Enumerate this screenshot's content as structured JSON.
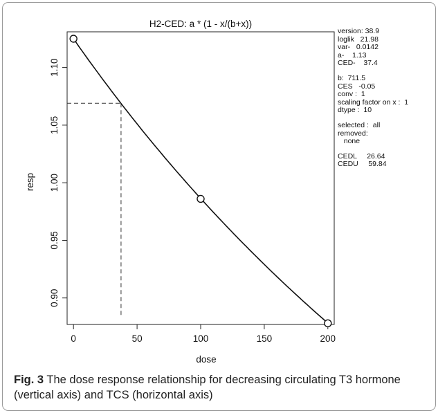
{
  "chart_data": {
    "type": "line",
    "title": "H2-CED: a * (1 - x/(b+x))",
    "xlabel": "dose",
    "ylabel": "resp",
    "xlim": [
      -5,
      205
    ],
    "ylim": [
      0.877,
      1.131
    ],
    "x_ticks": [
      0,
      50,
      100,
      150,
      200
    ],
    "x_tick_labels": [
      "0",
      "50",
      "100",
      "150",
      "200"
    ],
    "y_ticks": [
      0.9,
      0.95,
      1.0,
      1.05,
      1.1
    ],
    "y_tick_labels": [
      "0.90",
      "0.95",
      "1.00",
      "1.05",
      "1.10"
    ],
    "grid": false,
    "model": {
      "a": 1.125,
      "b": 711.5
    },
    "points": [
      {
        "x": 0,
        "y": 1.125
      },
      {
        "x": 100,
        "y": 0.986
      },
      {
        "x": 200,
        "y": 0.878
      }
    ],
    "ced_marker": {
      "x": 37.4,
      "y": 1.069
    }
  },
  "stats_panel": {
    "group1": [
      "version: 38.9",
      "loglik   21.98",
      "var-   0.0142",
      "a-    1.13",
      "CED-    37.4"
    ],
    "group2": [
      "b:  711.5",
      "CES   -0.05",
      "conv :  1",
      "scaling factor on x :  1",
      "dtype :  10"
    ],
    "group3": [
      "selected :  all",
      "removed:",
      "   none"
    ],
    "group4": [
      "CEDL     26.64",
      "CEDU     59.84"
    ]
  },
  "caption": {
    "label": "Fig. 3",
    "text": " The dose response relationship for decreasing circulating T3 hormone (vertical axis) and TCS (horizontal axis)"
  }
}
